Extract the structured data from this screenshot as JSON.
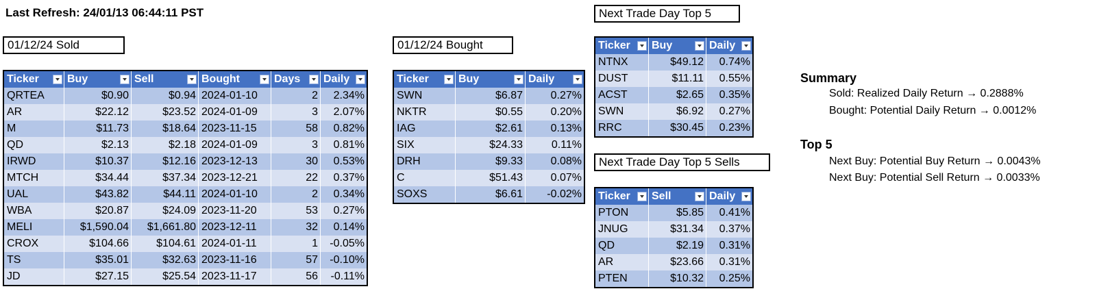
{
  "header": {
    "last_refresh": "Last Refresh: 24/01/13 06:44:11 PST"
  },
  "sold": {
    "title": "01/12/24 Sold",
    "columns": [
      "Ticker",
      "Buy",
      "Sell",
      "Bought",
      "Days",
      "Daily"
    ],
    "rows": [
      [
        "QRTEA",
        "$0.90",
        "$0.94",
        "2024-01-10",
        "2",
        "2.34%"
      ],
      [
        "AR",
        "$22.12",
        "$23.52",
        "2024-01-09",
        "3",
        "2.07%"
      ],
      [
        "M",
        "$11.73",
        "$18.64",
        "2023-11-15",
        "58",
        "0.82%"
      ],
      [
        "QD",
        "$2.13",
        "$2.18",
        "2024-01-09",
        "3",
        "0.81%"
      ],
      [
        "IRWD",
        "$10.37",
        "$12.16",
        "2023-12-13",
        "30",
        "0.53%"
      ],
      [
        "MTCH",
        "$34.44",
        "$37.34",
        "2023-12-21",
        "22",
        "0.37%"
      ],
      [
        "UAL",
        "$43.82",
        "$44.11",
        "2024-01-10",
        "2",
        "0.34%"
      ],
      [
        "WBA",
        "$20.87",
        "$24.09",
        "2023-11-20",
        "53",
        "0.27%"
      ],
      [
        "MELI",
        "$1,590.04",
        "$1,661.80",
        "2023-12-11",
        "32",
        "0.14%"
      ],
      [
        "CROX",
        "$104.66",
        "$104.61",
        "2024-01-11",
        "1",
        "-0.05%"
      ],
      [
        "TS",
        "$35.01",
        "$32.63",
        "2023-11-16",
        "57",
        "-0.10%"
      ],
      [
        "JD",
        "$27.15",
        "$25.54",
        "2023-11-17",
        "56",
        "-0.11%"
      ]
    ]
  },
  "bought": {
    "title": "01/12/24 Bought",
    "columns": [
      "Ticker",
      "Buy",
      "Daily"
    ],
    "rows": [
      [
        "SWN",
        "$6.87",
        "0.27%"
      ],
      [
        "NKTR",
        "$0.55",
        "0.20%"
      ],
      [
        "IAG",
        "$2.61",
        "0.13%"
      ],
      [
        "SIX",
        "$24.33",
        "0.11%"
      ],
      [
        "DRH",
        "$9.33",
        "0.08%"
      ],
      [
        "C",
        "$51.43",
        "0.07%"
      ],
      [
        "SOXS",
        "$6.61",
        "-0.02%"
      ]
    ]
  },
  "top5": {
    "title": "Next Trade Day Top 5",
    "columns": [
      "Ticker",
      "Buy",
      "Daily"
    ],
    "rows": [
      [
        "NTNX",
        "$49.12",
        "0.74%"
      ],
      [
        "DUST",
        "$11.11",
        "0.55%"
      ],
      [
        "ACST",
        "$2.65",
        "0.35%"
      ],
      [
        "SWN",
        "$6.92",
        "0.27%"
      ],
      [
        "RRC",
        "$30.45",
        "0.23%"
      ]
    ]
  },
  "top5sells": {
    "title": "Next Trade Day Top 5 Sells",
    "columns": [
      "Ticker",
      "Sell",
      "Daily"
    ],
    "rows": [
      [
        "PTON",
        "$5.85",
        "0.41%"
      ],
      [
        "JNUG",
        "$31.34",
        "0.37%"
      ],
      [
        "QD",
        "$2.19",
        "0.31%"
      ],
      [
        "AR",
        "$23.66",
        "0.31%"
      ],
      [
        "PTEN",
        "$10.32",
        "0.25%"
      ]
    ]
  },
  "summary": {
    "title": "Summary",
    "sold_line": "Sold: Realized Daily Return → 0.2888%",
    "bought_line": "Bought: Potential Daily Return → 0.0012%"
  },
  "top5_summary": {
    "title": "Top 5",
    "buy_line": "Next Buy: Potential Buy Return → 0.0043%",
    "sell_line": "Next Buy: Potential Sell Return → 0.0033%"
  }
}
